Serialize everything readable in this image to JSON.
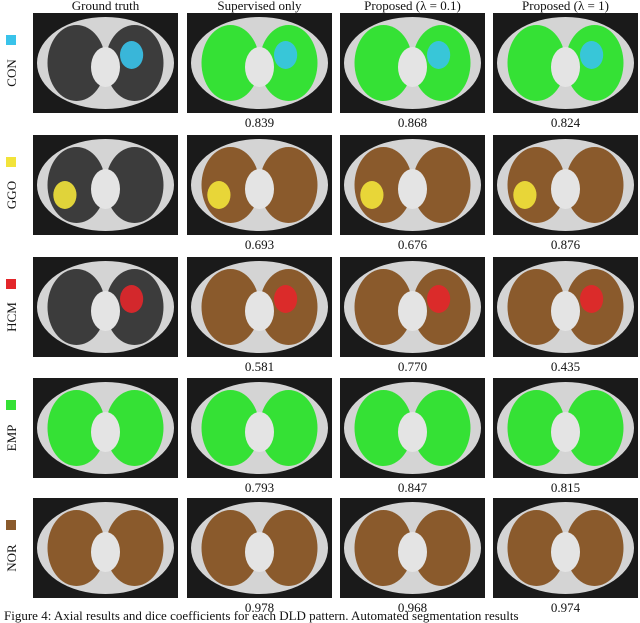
{
  "figure": {
    "columns": [
      "Ground truth",
      "Supervised only",
      "Proposed (λ = 0.1)",
      "Proposed (λ = 1)"
    ],
    "rows": [
      {
        "label": "CON",
        "color": "#39c3ea",
        "scores": [
          "0.839",
          "0.868",
          "0.824"
        ]
      },
      {
        "label": "GGO",
        "color": "#f2e33a",
        "scores": [
          "0.693",
          "0.676",
          "0.876"
        ]
      },
      {
        "label": "HCM",
        "color": "#e3262a",
        "scores": [
          "0.581",
          "0.770",
          "0.435"
        ]
      },
      {
        "label": "EMP",
        "color": "#35e135",
        "scores": [
          "0.793",
          "0.847",
          "0.815"
        ]
      },
      {
        "label": "NOR",
        "color": "#8a5a2c",
        "scores": [
          "0.978",
          "0.968",
          "0.974"
        ]
      }
    ],
    "caption": "Figure 4: Axial results and dice coefficients for each DLD pattern. Automated segmentation results"
  }
}
